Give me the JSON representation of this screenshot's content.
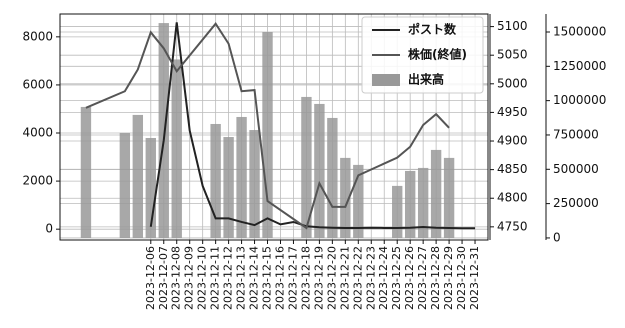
{
  "chart_data": {
    "type": "combo",
    "xlim": [
      "2023-11-29",
      "2024-01-01"
    ],
    "xticks": [
      "2023-12-06",
      "2023-12-07",
      "2023-12-08",
      "2023-12-09",
      "2023-12-10",
      "2023-12-11",
      "2023-12-12",
      "2023-12-13",
      "2023-12-14",
      "2023-12-15",
      "2023-12-16",
      "2023-12-17",
      "2023-12-18",
      "2023-12-19",
      "2023-12-20",
      "2023-12-21",
      "2023-12-22",
      "2023-12-23",
      "2023-12-24",
      "2023-12-25",
      "2023-12-26",
      "2023-12-27",
      "2023-12-28",
      "2023-12-29",
      "2023-12-30",
      "2023-12-31"
    ],
    "ylim": [
      -450,
      8950
    ],
    "yticks": [
      0,
      2000,
      4000,
      6000,
      8000
    ],
    "y2lim": [
      4727,
      5122
    ],
    "y2ticks": [
      4750,
      4800,
      4850,
      4900,
      4950,
      5000,
      5050,
      5100
    ],
    "y3lim": [
      -15000,
      1631000
    ],
    "y3ticks": [
      0,
      250000,
      500000,
      750000,
      1000000,
      1250000,
      1500000
    ],
    "grid": true,
    "legend": "upper right",
    "series": [
      {
        "name": "ポスト数",
        "type": "line",
        "axis": "y",
        "color": "#222222",
        "x": [
          "2023-12-06",
          "2023-12-07",
          "2023-12-08",
          "2023-12-09",
          "2023-12-10",
          "2023-12-11",
          "2023-12-12",
          "2023-12-13",
          "2023-12-14",
          "2023-12-15",
          "2023-12-16",
          "2023-12-17",
          "2023-12-18",
          "2023-12-19",
          "2023-12-20",
          "2023-12-21",
          "2023-12-22",
          "2023-12-23",
          "2023-12-24",
          "2023-12-25",
          "2023-12-26",
          "2023-12-27",
          "2023-12-28",
          "2023-12-29",
          "2023-12-30",
          "2023-12-31"
        ],
        "values": [
          100,
          3700,
          8600,
          4100,
          1800,
          450,
          450,
          300,
          170,
          450,
          200,
          300,
          120,
          80,
          60,
          50,
          50,
          60,
          50,
          50,
          60,
          90,
          60,
          50,
          40,
          40
        ]
      },
      {
        "name": "株価(終値)",
        "type": "line",
        "axis": "y2",
        "color": "#555555",
        "x": [
          "2023-12-01",
          "2023-12-04",
          "2023-12-05",
          "2023-12-06",
          "2023-12-07",
          "2023-12-08",
          "2023-12-11",
          "2023-12-12",
          "2023-12-13",
          "2023-12-14",
          "2023-12-15",
          "2023-12-18",
          "2023-12-19",
          "2023-12-20",
          "2023-12-21",
          "2023-12-22",
          "2023-12-25",
          "2023-12-26",
          "2023-12-27",
          "2023-12-28",
          "2023-12-29"
        ],
        "values": [
          4958,
          4987,
          5025,
          5090,
          5062,
          5022,
          5105,
          5070,
          4987,
          4989,
          4795,
          4748,
          4826,
          4785,
          4785,
          4840,
          4871,
          4890,
          4928,
          4947,
          4923
        ]
      },
      {
        "name": "出来高",
        "type": "bar",
        "axis": "y3",
        "color": "#999999",
        "x": [
          "2023-12-01",
          "2023-12-04",
          "2023-12-05",
          "2023-12-06",
          "2023-12-07",
          "2023-12-08",
          "2023-12-11",
          "2023-12-12",
          "2023-12-13",
          "2023-12-14",
          "2023-12-15",
          "2023-12-18",
          "2023-12-19",
          "2023-12-20",
          "2023-12-21",
          "2023-12-22",
          "2023-12-25",
          "2023-12-26",
          "2023-12-27",
          "2023-12-28",
          "2023-12-29"
        ],
        "values": [
          954000,
          765000,
          896000,
          728000,
          1565000,
          1300000,
          830000,
          735000,
          881000,
          786000,
          1500000,
          1027000,
          976000,
          874000,
          583000,
          532000,
          379000,
          488000,
          510000,
          641000,
          583000
        ]
      }
    ]
  }
}
